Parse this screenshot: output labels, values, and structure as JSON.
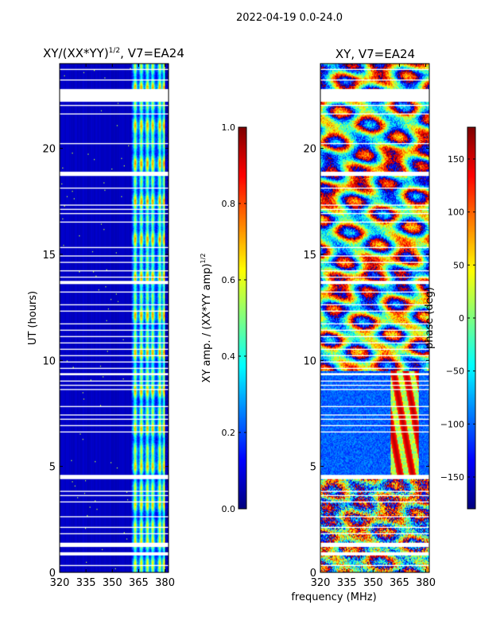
{
  "suptitle": "2022-04-19 0.0-24.0",
  "xlabel_shared": "frequency (MHz)",
  "chart_data": [
    {
      "type": "heatmap",
      "title": "XY/(XX*YY)",
      "title_sup": "1/2",
      "title_suffix": ", V7=EA24",
      "ylabel": "UT (hours)",
      "xlim": [
        320,
        382
      ],
      "ylim": [
        0,
        24
      ],
      "xticks": [
        "320",
        "335",
        "350",
        "365",
        "380"
      ],
      "yticks": [
        "0",
        "5",
        "10",
        "15",
        "20"
      ],
      "colorbar": {
        "label": "XY amp. / (XX*YY amp)",
        "label_sup": "1/2",
        "range": [
          0.0,
          1.0
        ],
        "ticks": [
          "0.0",
          "0.2",
          "0.4",
          "0.6",
          "0.8",
          "1.0"
        ],
        "colormap": "jet"
      },
      "features": {
        "background_value": 0.05,
        "signal_band_mhz": [
          361,
          380
        ],
        "signal_value_range": [
          0.2,
          0.65
        ],
        "gaps_ut_hours": [
          [
            22.2,
            22.8
          ],
          [
            18.7,
            18.9
          ],
          [
            4.4,
            4.6
          ],
          [
            1.2,
            1.4
          ],
          [
            0.8,
            0.95
          ],
          [
            9.3,
            9.4
          ],
          [
            13.6,
            13.75
          ]
        ]
      }
    },
    {
      "type": "heatmap",
      "title": "XY, V7=EA24",
      "xlim": [
        320,
        382
      ],
      "ylim": [
        0,
        24
      ],
      "xticks": [
        "320",
        "335",
        "350",
        "365",
        "380"
      ],
      "yticks": [
        "0",
        "5",
        "10",
        "15",
        "20"
      ],
      "colorbar": {
        "label": "phase (deg)",
        "range": [
          -180,
          180
        ],
        "ticks": [
          "−150",
          "−100",
          "−50",
          "0",
          "50",
          "100",
          "150"
        ],
        "colormap": "jet"
      },
      "features": {
        "value_range_deg": [
          -180,
          180
        ],
        "mostly_blue_hours": [
          4.5,
          9.5
        ],
        "red_band_mhz": [
          360,
          376
        ],
        "gaps_ut_hours": [
          [
            22.2,
            22.8
          ],
          [
            18.7,
            18.9
          ],
          [
            4.4,
            4.6
          ],
          [
            1.2,
            1.4
          ],
          [
            0.8,
            0.95
          ]
        ]
      }
    }
  ]
}
